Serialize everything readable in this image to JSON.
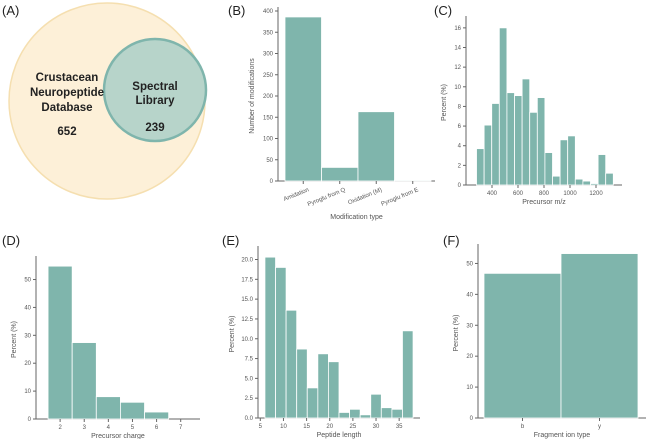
{
  "colors": {
    "bar": "#7fb5ac",
    "venn_outer": "#fdf0d8",
    "venn_outer_stroke": "#f5dfb0",
    "venn_inner": "#b7d4ca",
    "venn_inner_stroke": "#7fb5ac"
  },
  "chart_data": [
    {
      "panel": "(A)",
      "type": "venn",
      "sets": [
        {
          "name_lines": [
            "Crustacean",
            "Neuropeptide",
            "Database"
          ],
          "value": "652"
        },
        {
          "name_lines": [
            "Spectral",
            "Library"
          ],
          "value": "239"
        }
      ]
    },
    {
      "panel": "(B)",
      "type": "bar",
      "categories": [
        "Amidation",
        "Pyroglu from Q",
        "Oxidation (M)",
        "Pyroglu from E"
      ],
      "values": [
        386,
        32,
        163,
        2
      ],
      "xlabel": "Modification type",
      "ylabel": "Number of modifications",
      "ylim": [
        0,
        400
      ],
      "yticks": [
        0,
        50,
        100,
        150,
        200,
        250,
        300,
        350,
        400
      ]
    },
    {
      "panel": "(C)",
      "type": "bar",
      "histogram": true,
      "bin_edges": [
        281,
        339.4,
        397.9,
        456.3,
        514.8,
        573.2,
        631.7,
        690.1,
        748.6,
        807,
        865.4,
        923.9,
        982.3,
        1040.8,
        1099.2,
        1157.7,
        1216.1,
        1274.6,
        1333
      ],
      "values": [
        3.7,
        6.1,
        8.3,
        16.0,
        9.4,
        9.1,
        10.8,
        7.4,
        8.9,
        3.3,
        0.9,
        4.6,
        5.0,
        0.6,
        0.4,
        0.15,
        3.1,
        1.2
      ],
      "xlabel": "Precursor m/z",
      "ylabel": "Percent (%)",
      "xlim": [
        200,
        1400
      ],
      "xticks": [
        400,
        600,
        800,
        1000,
        1200
      ],
      "ylim": [
        0,
        16.8
      ],
      "yticks": [
        0,
        2,
        4,
        6,
        8,
        10,
        12,
        14,
        16
      ]
    },
    {
      "panel": "(D)",
      "type": "bar",
      "histogram": true,
      "bin_edges": [
        1.5,
        2.5,
        3.5,
        4.5,
        5.5,
        6.5
      ],
      "values": [
        54.8,
        27.4,
        8.0,
        6.0,
        2.5
      ],
      "xlabel": "Precursor charge",
      "ylabel": "Percent (%)",
      "xlim": [
        1.0,
        7.8
      ],
      "xticks": [
        2,
        3,
        4,
        5,
        6,
        7
      ],
      "ylim": [
        0,
        57
      ],
      "yticks": [
        0,
        10,
        20,
        30,
        40,
        50
      ]
    },
    {
      "panel": "(E)",
      "type": "bar",
      "histogram": true,
      "bin_edges": [
        6,
        8.29,
        10.57,
        12.86,
        15.14,
        17.43,
        19.71,
        22,
        24.29,
        26.57,
        28.86,
        31.14,
        33.43,
        35.71,
        38
      ],
      "values": [
        20.3,
        19.0,
        13.6,
        8.7,
        3.8,
        8.1,
        7.1,
        0.7,
        1.1,
        0.4,
        3.0,
        1.3,
        1.1,
        11.0
      ],
      "xlabel": "Peptide length",
      "ylabel": "Percent (%)",
      "xlim": [
        4.5,
        39.5
      ],
      "xticks": [
        5,
        10,
        15,
        20,
        25,
        30,
        35
      ],
      "ylim": [
        0,
        21.2
      ],
      "yticks": [
        0.0,
        2.5,
        5.0,
        7.5,
        10.0,
        12.5,
        15.0,
        17.5,
        20.0
      ],
      "ytick_labels": [
        "0.0",
        "2.5",
        "5.0",
        "7.5",
        "10.0",
        "12.5",
        "15.0",
        "17.5",
        "20.0"
      ]
    },
    {
      "panel": "(F)",
      "type": "bar",
      "categories": [
        "b",
        "y"
      ],
      "values": [
        46.8,
        53.2
      ],
      "xlabel": "Fragment ion type",
      "ylabel": "Percent (%)",
      "ylim": [
        0,
        55
      ],
      "yticks": [
        0,
        10,
        20,
        30,
        40,
        50
      ]
    }
  ]
}
